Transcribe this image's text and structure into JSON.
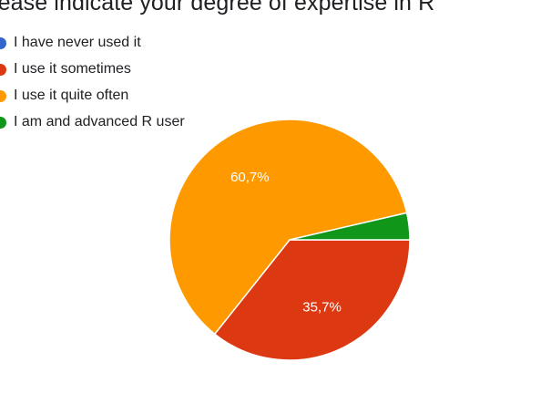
{
  "chart_data": {
    "type": "pie",
    "title": "lease indicate your degree of expertise in R",
    "legend_placement": "top-left",
    "slices": [
      {
        "label": "I have never used it",
        "value": 0.0,
        "percent_label": "",
        "color": "#3366cc"
      },
      {
        "label": "I use it sometimes",
        "value": 35.7,
        "percent_label": "35,7%",
        "color": "#dc3912"
      },
      {
        "label": "I use it quite often",
        "value": 60.7,
        "percent_label": "60,7%",
        "color": "#ff9900"
      },
      {
        "label": "I am and advanced R user",
        "value": 3.6,
        "percent_label": "",
        "color": "#109618"
      }
    ]
  }
}
